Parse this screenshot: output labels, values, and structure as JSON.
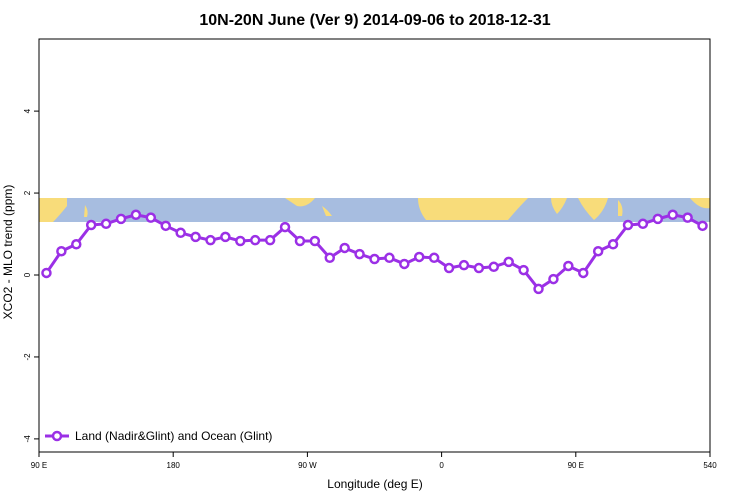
{
  "chart_data": {
    "type": "line",
    "title": "10N-20N June (Ver 9)   2014-09-06 to 2018-12-31",
    "x_label": "Longitude (deg E)",
    "y_label": "XCO2 - MLO trend (ppm)",
    "x": [
      95,
      105,
      115,
      125,
      135,
      145,
      155,
      165,
      175,
      185,
      195,
      205,
      215,
      225,
      235,
      245,
      255,
      265,
      275,
      285,
      295,
      305,
      315,
      325,
      335,
      345,
      355,
      365,
      375,
      385,
      395,
      405,
      415,
      425,
      435,
      445,
      455,
      465,
      475,
      485,
      495,
      505,
      515,
      525,
      535
    ],
    "series": [
      {
        "name": "Land (Nadir&Glint) and Ocean (Glint)",
        "color": "#9b30e6",
        "values": [
          0.05,
          0.58,
          0.75,
          1.22,
          1.25,
          1.37,
          1.47,
          1.4,
          1.2,
          1.03,
          0.93,
          0.85,
          0.93,
          0.83,
          0.85,
          0.85,
          1.17,
          0.83,
          0.83,
          0.42,
          0.66,
          0.51,
          0.39,
          0.42,
          0.27,
          0.44,
          0.42,
          0.17,
          0.24,
          0.17,
          0.2,
          0.32,
          0.12,
          -0.34,
          -0.1,
          0.22,
          0.05,
          0.58,
          0.75,
          1.22,
          1.25,
          1.37,
          1.47,
          1.4,
          1.2
        ]
      }
    ],
    "xlim": [
      90,
      540
    ],
    "xticks": [
      {
        "value": 90,
        "label": "90 E"
      },
      180,
      {
        "value": 270,
        "label": "90 W"
      },
      {
        "value": 360,
        "label": "0"
      },
      {
        "value": 450,
        "label": "90 E"
      },
      540
    ],
    "ylim": [
      -4.32,
      5.76
    ],
    "yticks": [
      -4,
      -2,
      0,
      2,
      4
    ],
    "legend": "bottom-left"
  }
}
